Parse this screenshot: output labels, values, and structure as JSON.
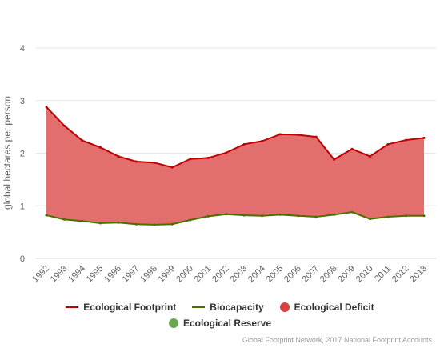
{
  "chart_data": {
    "type": "area",
    "ylabel": "global hectares per person",
    "xlabel": "",
    "ylim": [
      0,
      4
    ],
    "y_ticks": [
      "0",
      "1",
      "2",
      "3",
      "4"
    ],
    "categories": [
      "1992",
      "1993",
      "1994",
      "1995",
      "1996",
      "1997",
      "1998",
      "1999",
      "2000",
      "2001",
      "2002",
      "2003",
      "2004",
      "2005",
      "2006",
      "2007",
      "2008",
      "2009",
      "2010",
      "2011",
      "2012",
      "2013"
    ],
    "series": [
      {
        "name": "Ecological Footprint",
        "color": "#c00000",
        "values": [
          2.88,
          2.52,
          2.24,
          2.11,
          1.94,
          1.84,
          1.82,
          1.73,
          1.89,
          1.91,
          2.01,
          2.17,
          2.23,
          2.36,
          2.35,
          2.31,
          1.88,
          2.08,
          1.94,
          2.17,
          2.25,
          2.29
        ]
      },
      {
        "name": "Biocapacity",
        "color": "#4a6f00",
        "values": [
          0.82,
          0.74,
          0.71,
          0.67,
          0.68,
          0.65,
          0.64,
          0.65,
          0.73,
          0.8,
          0.84,
          0.82,
          0.81,
          0.83,
          0.81,
          0.79,
          0.83,
          0.88,
          0.75,
          0.79,
          0.81,
          0.81
        ]
      }
    ],
    "fills": [
      {
        "name": "Ecological Deficit",
        "color": "#e06666"
      },
      {
        "name": "Ecological Reserve",
        "color": "#6aa84f"
      }
    ],
    "grid": true,
    "legend_position": "bottom",
    "source": "Global Footprint Network, 2017 National Footprint Accounts"
  }
}
